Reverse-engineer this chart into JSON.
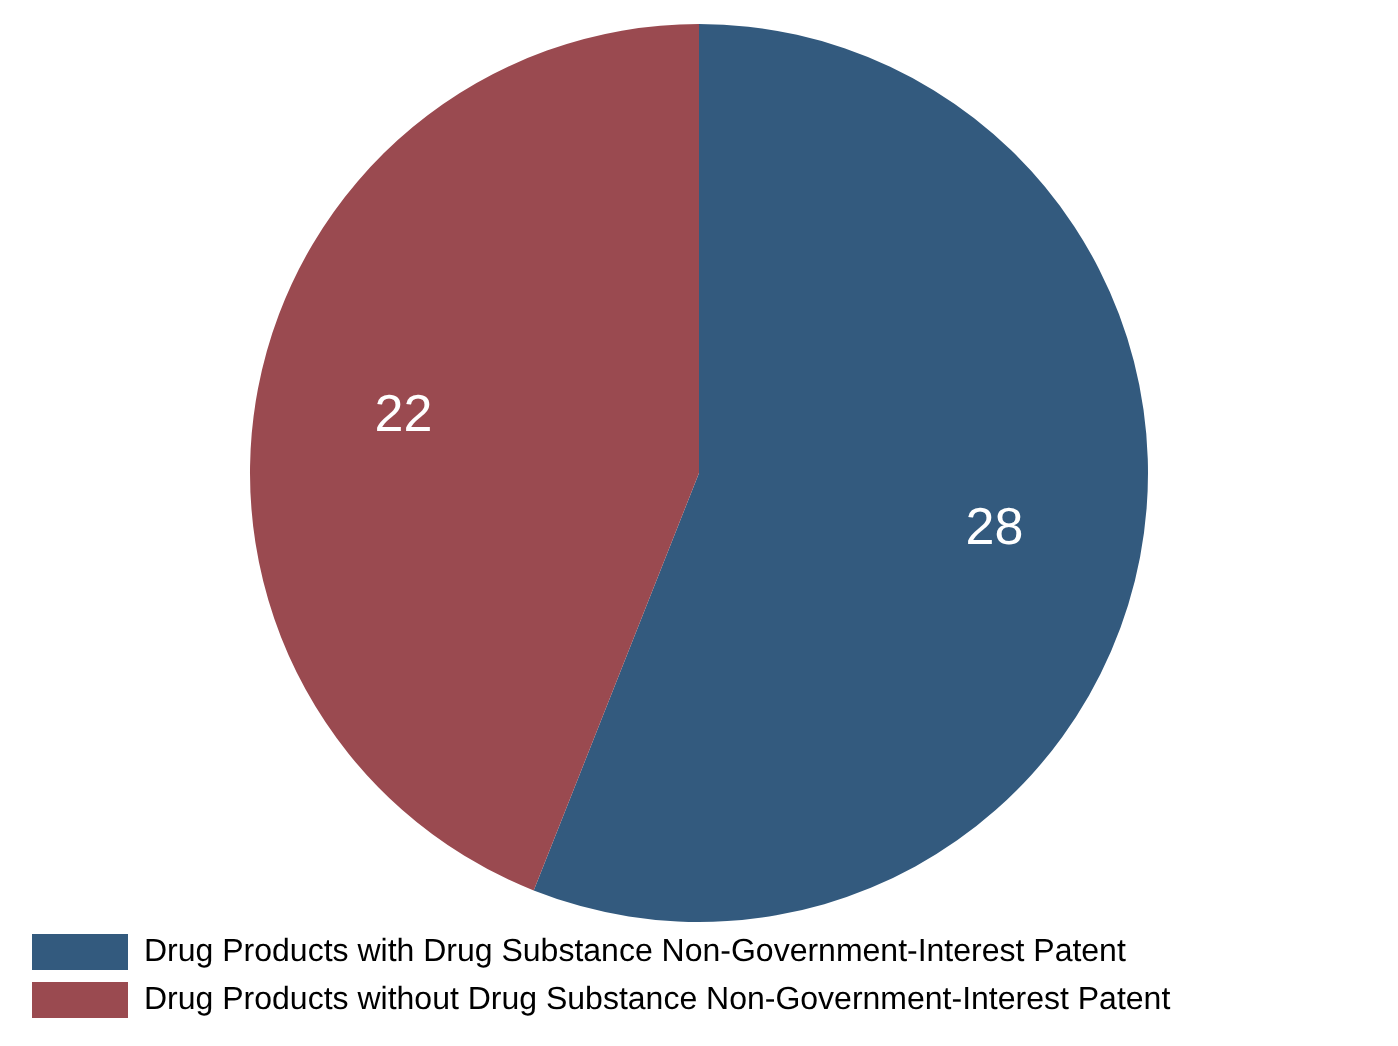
{
  "chart_data": {
    "type": "pie",
    "categories": [
      "Drug Products with Drug Substance Non-Government-Interest Patent",
      "Drug Products without Drug Substance Non-Government-Interest Patent"
    ],
    "values": [
      28,
      22
    ],
    "colors": [
      "#335a7e",
      "#9a4a50"
    ],
    "data_labels": true,
    "legend": "bottom"
  }
}
